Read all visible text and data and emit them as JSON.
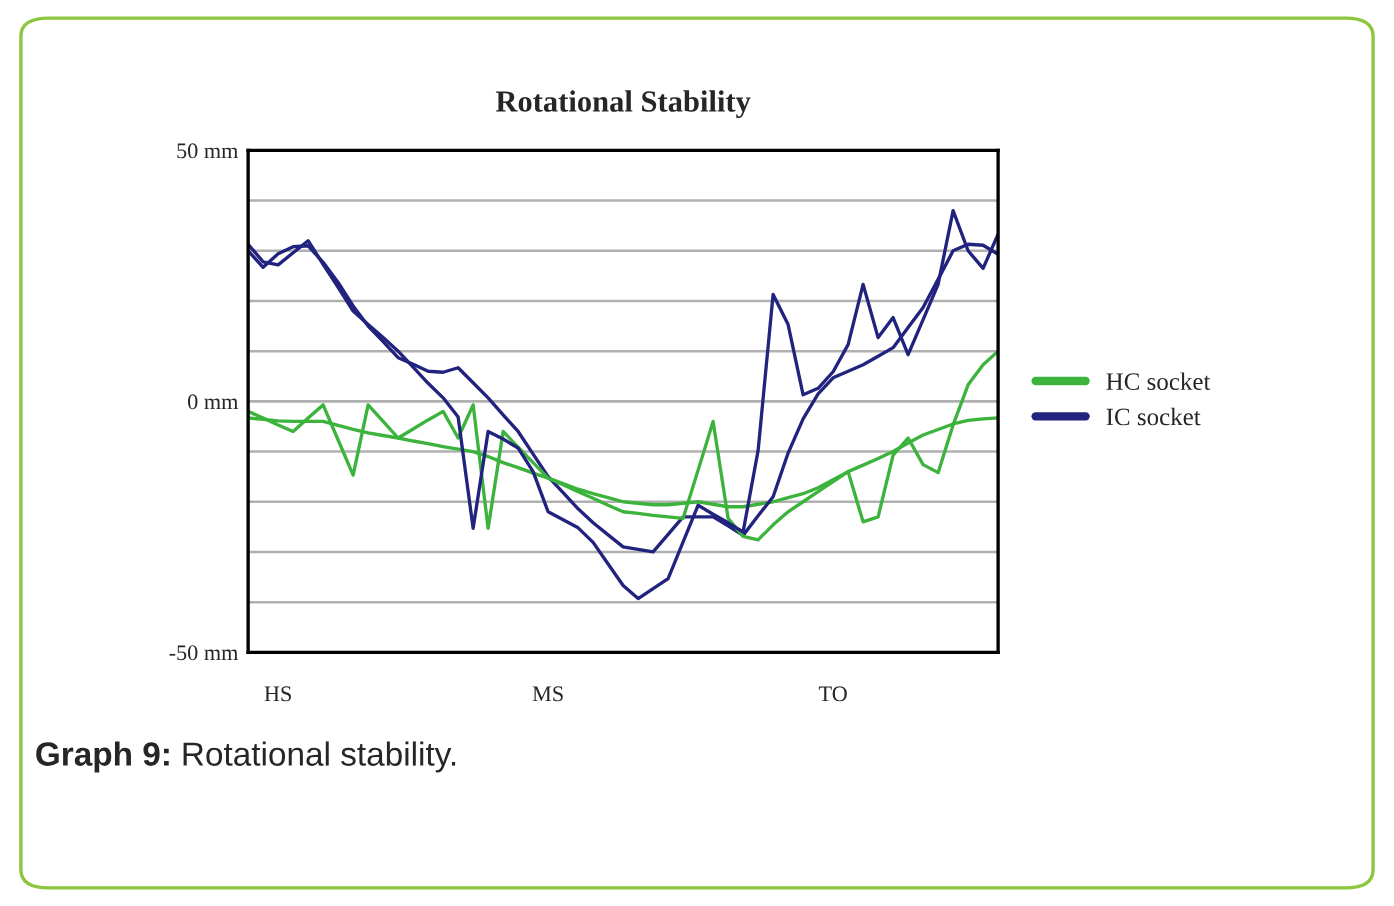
{
  "chart_data": {
    "type": "line",
    "title": "Rotational Stability",
    "categories": [
      null,
      null,
      "HS",
      null,
      null,
      null,
      null,
      null,
      null,
      null,
      null,
      null,
      null,
      null,
      null,
      null,
      null,
      null,
      null,
      null,
      "MS",
      null,
      null,
      null,
      null,
      null,
      null,
      null,
      null,
      null,
      null,
      null,
      null,
      null,
      null,
      null,
      null,
      null,
      null,
      "TO",
      null,
      null,
      null,
      null,
      null,
      null,
      null,
      null,
      null,
      null,
      null
    ],
    "ylim": [
      -50,
      50
    ],
    "yticks": [
      {
        "value": -50,
        "label": "-50 mm"
      },
      {
        "value": 0,
        "label": "0 mm"
      },
      {
        "value": 50,
        "label": "50 mm"
      }
    ],
    "grid": "y",
    "legend": "right",
    "marker": "none",
    "line_style": "solid",
    "annotations": [
      "Graph 9: Rotational stability."
    ],
    "series": [
      {
        "name": "HC socket",
        "color": "#3cb33c",
        "values": [
          -3.3,
          -3.6,
          -3.9,
          -4,
          -4,
          -4,
          -4.8,
          -5.6,
          -6.3,
          -6.8,
          -7.3,
          -7.9,
          -8.4,
          -9,
          -9.5,
          -10,
          -11,
          -12.2,
          -13.2,
          -14.3,
          -15.3,
          -16.4,
          -17.5,
          -18.4,
          -19.2,
          -20,
          -20.3,
          -20.6,
          -20.6,
          -20.3,
          -20,
          -20.5,
          -21,
          -21,
          -20.5,
          -20,
          -19.2,
          -18.4,
          -17.2,
          -15.6,
          -14,
          -12.7,
          -11.4,
          -10,
          -8.3,
          -6.7,
          -5.6,
          -4.5,
          -3.8,
          -3.5,
          -3.3
        ]
      },
      {
        "name": "IC socket",
        "color": "#22237e",
        "values": [
          30,
          26.7,
          29.4,
          30.8,
          31,
          27.7,
          23.7,
          19,
          15,
          11.9,
          8.7,
          7.4,
          6,
          5.8,
          6.7,
          3.7,
          0.7,
          -2.7,
          -6,
          -10.5,
          -15,
          -18.2,
          -21.4,
          -24.2,
          -26.6,
          -29,
          -29.5,
          -30,
          -26.5,
          -23,
          -23,
          -23,
          -24.8,
          -26.7,
          -22.8,
          -19,
          -10.3,
          -3.5,
          1.5,
          4.7,
          6,
          7.3,
          9,
          10.7,
          14.7,
          18.7,
          24.3,
          30,
          31.3,
          31.1,
          29.3
        ]
      },
      {
        "color": "#3cb33c",
        "values": [
          -2,
          -3.3,
          -4.7,
          -6,
          -3.3,
          -0.7,
          -7.7,
          -14.7,
          -0.7,
          -4,
          -7.3,
          -5.5,
          -3.7,
          -2,
          -7.3,
          -0.7,
          -25.3,
          -6,
          -9.1,
          -12.2,
          -15.3,
          -16.6,
          -18,
          -19.3,
          -20.7,
          -22,
          -22.3,
          -22.7,
          -23,
          -23.3,
          -13.7,
          -4,
          -23.3,
          -26.9,
          -27.6,
          -24.6,
          -22,
          -20,
          -18,
          -16,
          -14,
          -24,
          -23,
          -10.7,
          -7.3,
          -12.6,
          -14.2,
          -4.7,
          3.3,
          7.3,
          10
        ]
      },
      {
        "color": "#22237e",
        "values": [
          31.3,
          27.8,
          27.2,
          29.6,
          32,
          27.3,
          22.7,
          18,
          15.3,
          12.7,
          10,
          6.8,
          3.6,
          0.7,
          -3.1,
          -25.3,
          -6,
          -7.5,
          -9.3,
          -14,
          -22,
          -23.6,
          -25.2,
          -28.1,
          -32.4,
          -36.7,
          -39.3,
          -37.3,
          -35.3,
          -28,
          -20.7,
          -22.5,
          -24.2,
          -26,
          -9.8,
          21.3,
          15.3,
          1.3,
          2.6,
          5.9,
          11.3,
          23.3,
          12.7,
          16.7,
          9.3,
          16.3,
          23.3,
          38,
          30,
          26.5,
          33.3
        ]
      }
    ]
  }
}
